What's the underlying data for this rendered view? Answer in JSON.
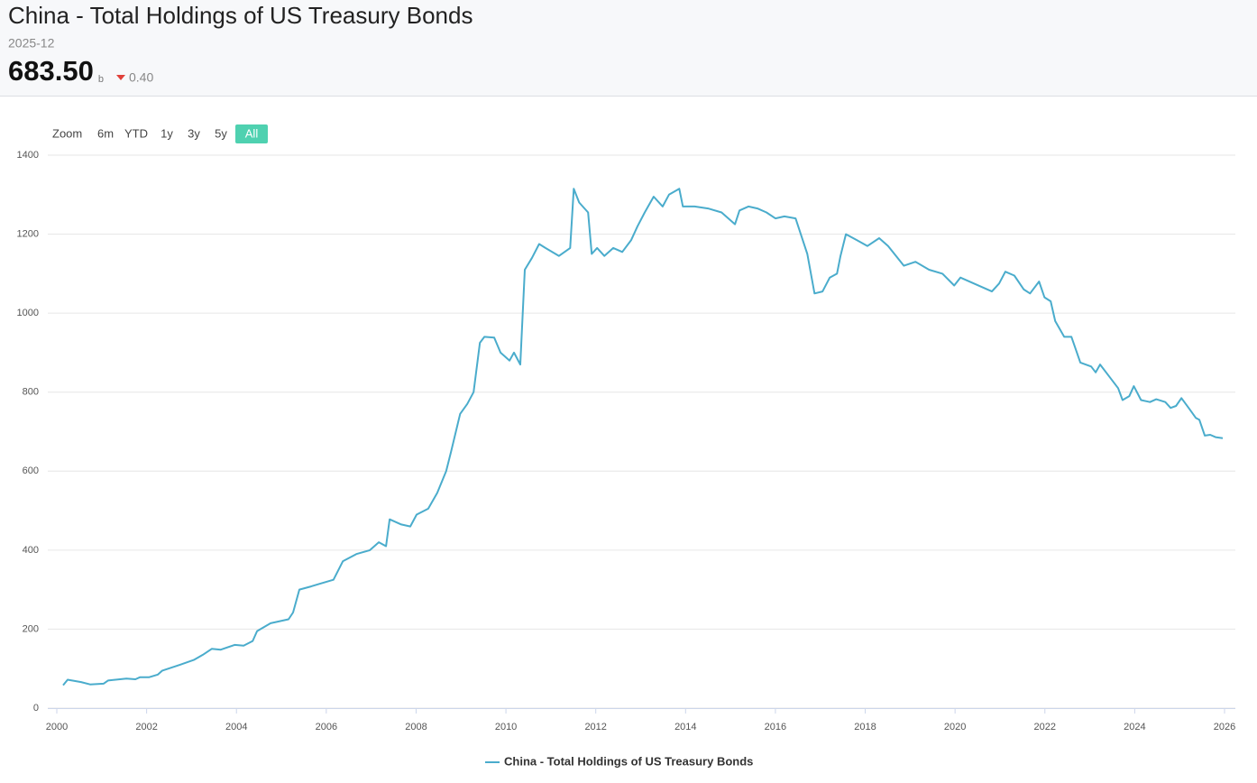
{
  "header": {
    "title": "China - Total Holdings of US Treasury Bonds",
    "date": "2025-12",
    "value": "683.50",
    "unit": "b",
    "change": "0.40"
  },
  "range_selector": {
    "label": "Zoom",
    "buttons": [
      "6m",
      "YTD",
      "1y",
      "3y",
      "5y",
      "All"
    ],
    "active": "All"
  },
  "chart_data": {
    "type": "line",
    "x": [
      2000.14,
      2000.24,
      2000.54,
      2000.74,
      2001.04,
      2001.14,
      2001.55,
      2001.75,
      2001.85,
      2002.05,
      2002.25,
      2002.35,
      2002.75,
      2003.05,
      2003.25,
      2003.45,
      2003.65,
      2003.96,
      2004.16,
      2004.36,
      2004.46,
      2004.76,
      2005.16,
      2005.26,
      2005.4,
      2005.66,
      2005.86,
      2006.16,
      2006.37,
      2006.67,
      2006.97,
      2007.17,
      2007.33,
      2007.41,
      2007.67,
      2007.87,
      2008.01,
      2008.27,
      2008.47,
      2008.67,
      2008.78,
      2008.98,
      2009.14,
      2009.28,
      2009.42,
      2009.52,
      2009.74,
      2009.88,
      2010.08,
      2010.18,
      2010.32,
      2010.42,
      2010.58,
      2010.74,
      2010.88,
      2011.18,
      2011.43,
      2011.51,
      2011.63,
      2011.83,
      2011.91,
      2012.03,
      2012.19,
      2012.39,
      2012.59,
      2012.79,
      2012.93,
      2013.09,
      2013.29,
      2013.49,
      2013.63,
      2013.86,
      2013.94,
      2014.2,
      2014.5,
      2014.8,
      2015.1,
      2015.2,
      2015.4,
      2015.6,
      2015.8,
      2016.0,
      2016.2,
      2016.45,
      2016.71,
      2016.87,
      2017.05,
      2017.21,
      2017.37,
      2017.45,
      2017.57,
      2017.81,
      2018.05,
      2018.31,
      2018.51,
      2018.86,
      2019.12,
      2019.42,
      2019.72,
      2019.98,
      2020.12,
      2020.42,
      2020.82,
      2020.98,
      2021.12,
      2021.32,
      2021.53,
      2021.67,
      2021.87,
      2021.99,
      2022.13,
      2022.23,
      2022.43,
      2022.59,
      2022.79,
      2023.03,
      2023.13,
      2023.23,
      2023.43,
      2023.63,
      2023.73,
      2023.88,
      2023.98,
      2024.14,
      2024.34,
      2024.48,
      2024.68,
      2024.8,
      2024.92,
      2025.04,
      2025.2,
      2025.36,
      2025.44,
      2025.56,
      2025.68,
      2025.8,
      2025.96
    ],
    "series": [
      {
        "name": "China - Total Holdings of US Treasury Bonds",
        "color": "#4aaccc",
        "values": [
          58,
          72,
          66,
          60,
          62,
          70,
          75,
          73,
          78,
          78,
          85,
          95,
          110,
          122,
          135,
          150,
          148,
          160,
          158,
          170,
          195,
          215,
          225,
          242,
          300,
          308,
          315,
          325,
          372,
          390,
          400,
          420,
          410,
          478,
          465,
          460,
          490,
          505,
          545,
          600,
          650,
          745,
          770,
          800,
          925,
          940,
          938,
          900,
          880,
          900,
          870,
          1110,
          1140,
          1175,
          1165,
          1145,
          1165,
          1315,
          1280,
          1255,
          1150,
          1165,
          1145,
          1165,
          1155,
          1185,
          1220,
          1255,
          1295,
          1270,
          1300,
          1315,
          1270,
          1270,
          1265,
          1255,
          1225,
          1260,
          1270,
          1265,
          1255,
          1240,
          1245,
          1240,
          1150,
          1050,
          1055,
          1090,
          1100,
          1145,
          1200,
          1185,
          1170,
          1190,
          1170,
          1120,
          1130,
          1110,
          1100,
          1070,
          1090,
          1075,
          1055,
          1075,
          1105,
          1095,
          1060,
          1050,
          1080,
          1040,
          1030,
          980,
          940,
          940,
          875,
          865,
          850,
          870,
          840,
          810,
          780,
          790,
          815,
          780,
          775,
          782,
          775,
          760,
          765,
          785,
          760,
          735,
          730,
          690,
          692,
          686,
          683.5
        ]
      }
    ],
    "xlim": [
      2000,
      2026
    ],
    "xticks": [
      2000,
      2002,
      2004,
      2006,
      2008,
      2010,
      2012,
      2014,
      2016,
      2018,
      2020,
      2022,
      2024,
      2026
    ],
    "ylim": [
      0,
      1400
    ],
    "yticks": [
      0,
      200,
      400,
      600,
      800,
      1000,
      1200,
      1400
    ],
    "grid": true,
    "legend": "bottom"
  }
}
